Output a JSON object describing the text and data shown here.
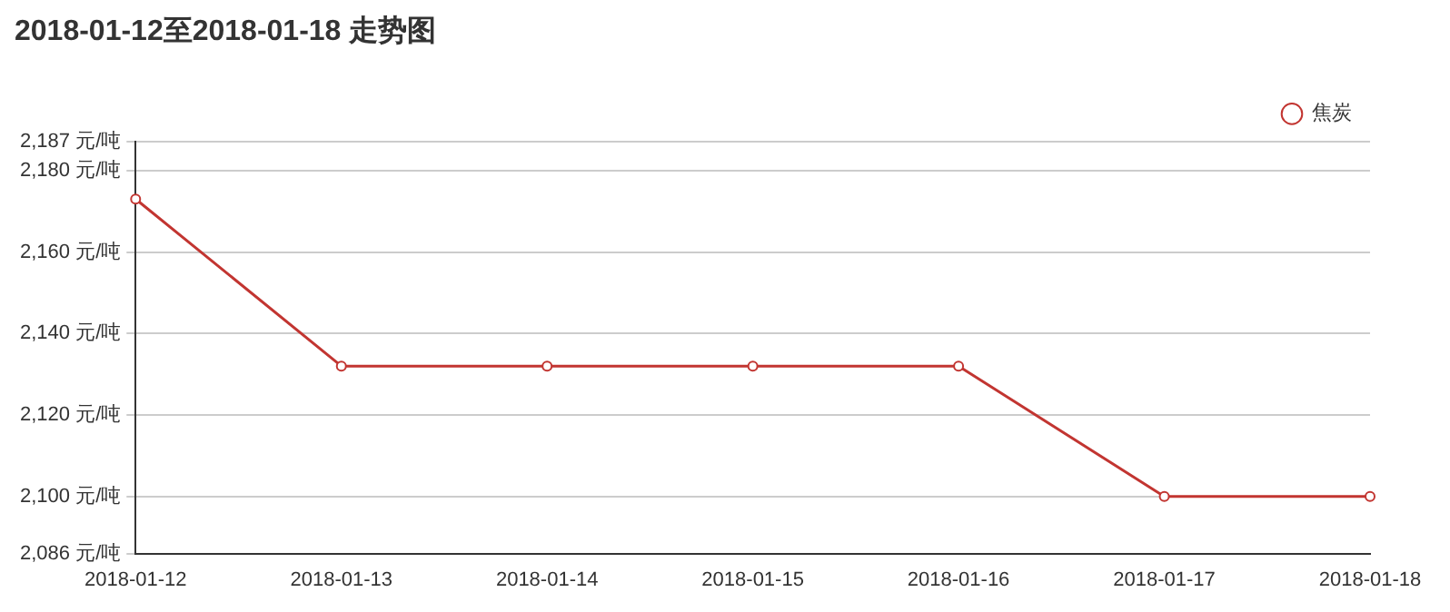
{
  "chart_data": {
    "type": "line",
    "title": "2018-01-12至2018-01-18 走势图",
    "categories": [
      "2018-01-12",
      "2018-01-13",
      "2018-01-14",
      "2018-01-15",
      "2018-01-16",
      "2018-01-17",
      "2018-01-18"
    ],
    "series": [
      {
        "name": "焦炭",
        "color": "#c23531",
        "values": [
          2173,
          2132,
          2132,
          2132,
          2132,
          2100,
          2100
        ]
      }
    ],
    "ylim": [
      2086,
      2187
    ],
    "yticks": [
      {
        "value": 2086,
        "label": "2,086 元/吨"
      },
      {
        "value": 2100,
        "label": "2,100 元/吨"
      },
      {
        "value": 2120,
        "label": "2,120 元/吨"
      },
      {
        "value": 2140,
        "label": "2,140 元/吨"
      },
      {
        "value": 2160,
        "label": "2,160 元/吨"
      },
      {
        "value": 2180,
        "label": "2,180 元/吨"
      },
      {
        "value": 2187,
        "label": "2,187 元/吨"
      }
    ],
    "grid": "y",
    "legend": "top right",
    "marker": "circle",
    "line_style": "solid"
  }
}
